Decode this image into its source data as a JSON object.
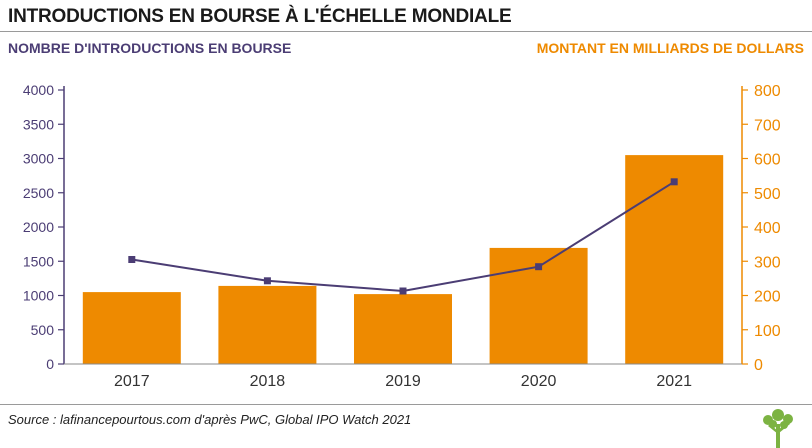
{
  "header": {
    "title": "INTRODUCTIONS EN BOURSE À L'ÉCHELLE MONDIALE",
    "left_axis_title": "NOMBRE D'INTRODUCTIONS EN BOURSE",
    "right_axis_title": "MONTANT EN MILLIARDS DE DOLLARS"
  },
  "colors": {
    "bar": "#ee8a00",
    "line": "#4b3d74",
    "left_axis": "#4b3d74",
    "right_axis": "#ee8a00",
    "logo": "#7cb342"
  },
  "chart_data": {
    "type": "bar",
    "title": "INTRODUCTIONS EN BOURSE À L'ÉCHELLE MONDIALE",
    "categories": [
      "2017",
      "2018",
      "2019",
      "2020",
      "2021"
    ],
    "series": [
      {
        "name": "MONTANT EN MILLIARDS DE DOLLARS",
        "type": "bar",
        "axis": "right",
        "values": [
          210,
          228,
          204,
          339,
          610
        ]
      },
      {
        "name": "NOMBRE D'INTRODUCTIONS EN BOURSE",
        "type": "line",
        "axis": "left",
        "values": [
          1525,
          1215,
          1065,
          1420,
          2660
        ]
      }
    ],
    "left_axis": {
      "ylabel": "NOMBRE D'INTRODUCTIONS EN BOURSE",
      "ylim": [
        0,
        4000
      ],
      "ticks": [
        "0",
        "500",
        "1000",
        "1500",
        "2000",
        "2500",
        "3000",
        "3500",
        "4000"
      ]
    },
    "right_axis": {
      "ylabel": "MONTANT EN MILLIARDS DE DOLLARS",
      "ylim": [
        0,
        800
      ],
      "ticks": [
        "0",
        "100",
        "200",
        "300",
        "400",
        "500",
        "600",
        "700",
        "800"
      ]
    },
    "grid": false,
    "legend": "none"
  },
  "footer": {
    "source": "Source : lafinancepourtous.com d'après PwC, Global IPO Watch 2021"
  }
}
